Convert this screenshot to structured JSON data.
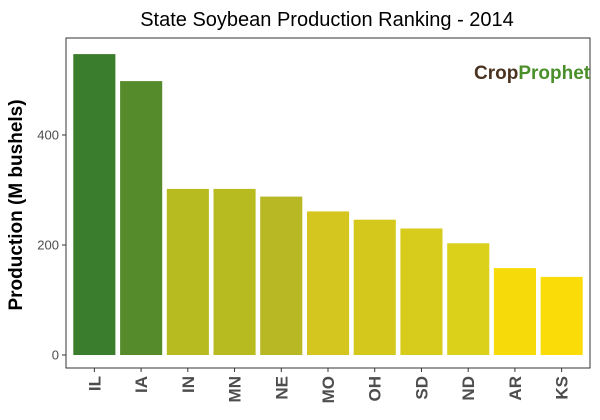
{
  "chart_data": {
    "type": "bar",
    "title": "State Soybean Production Ranking - 2014",
    "xlabel": "",
    "ylabel": "Production (M bushels)",
    "ylim": [
      0,
      570
    ],
    "yticks": [
      0,
      200,
      400
    ],
    "grid": false,
    "categories": [
      "IL",
      "IA",
      "IN",
      "MN",
      "NE",
      "MO",
      "OH",
      "SD",
      "ND",
      "AR",
      "KS"
    ],
    "values": [
      547,
      498,
      302,
      302,
      288,
      261,
      246,
      230,
      203,
      158,
      142
    ],
    "colors": [
      "#3a7d2c",
      "#568b2c",
      "#b8bb20",
      "#b8bb20",
      "#b8b824",
      "#d4c61e",
      "#d5c81c",
      "#d7cb1c",
      "#dbd01a",
      "#f7da0a",
      "#f9dc08"
    ]
  },
  "logo": {
    "text_dark": "Crop",
    "text_green": "Prophet",
    "color_dark": "#4a3320",
    "color_green": "#4a8f2a"
  },
  "style": {
    "axis_color": "#333333",
    "background": "#ffffff"
  }
}
